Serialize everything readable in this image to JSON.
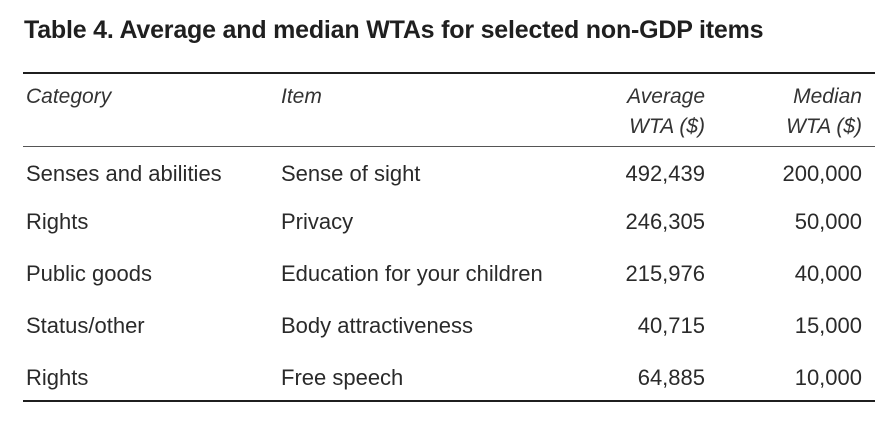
{
  "table": {
    "title": "Table 4. Average and median WTAs for selected non-GDP items",
    "headers": {
      "category": "Category",
      "item": "Item",
      "average_line1": "Average",
      "average_line2": "WTA ($)",
      "median_line1": "Median",
      "median_line2": "WTA ($)"
    },
    "rows": [
      {
        "category": "Senses and abilities",
        "item": "Sense of sight",
        "average": "492,439",
        "median": "200,000"
      },
      {
        "category": "Rights",
        "item": "Privacy",
        "average": "246,305",
        "median": "50,000"
      },
      {
        "category": "Public goods",
        "item": "Education for your children",
        "average": "215,976",
        "median": "40,000"
      },
      {
        "category": "Status/other",
        "item": "Body attractiveness",
        "average": "40,715",
        "median": "15,000"
      },
      {
        "category": "Rights",
        "item": "Free speech",
        "average": "64,885",
        "median": "10,000"
      }
    ]
  }
}
